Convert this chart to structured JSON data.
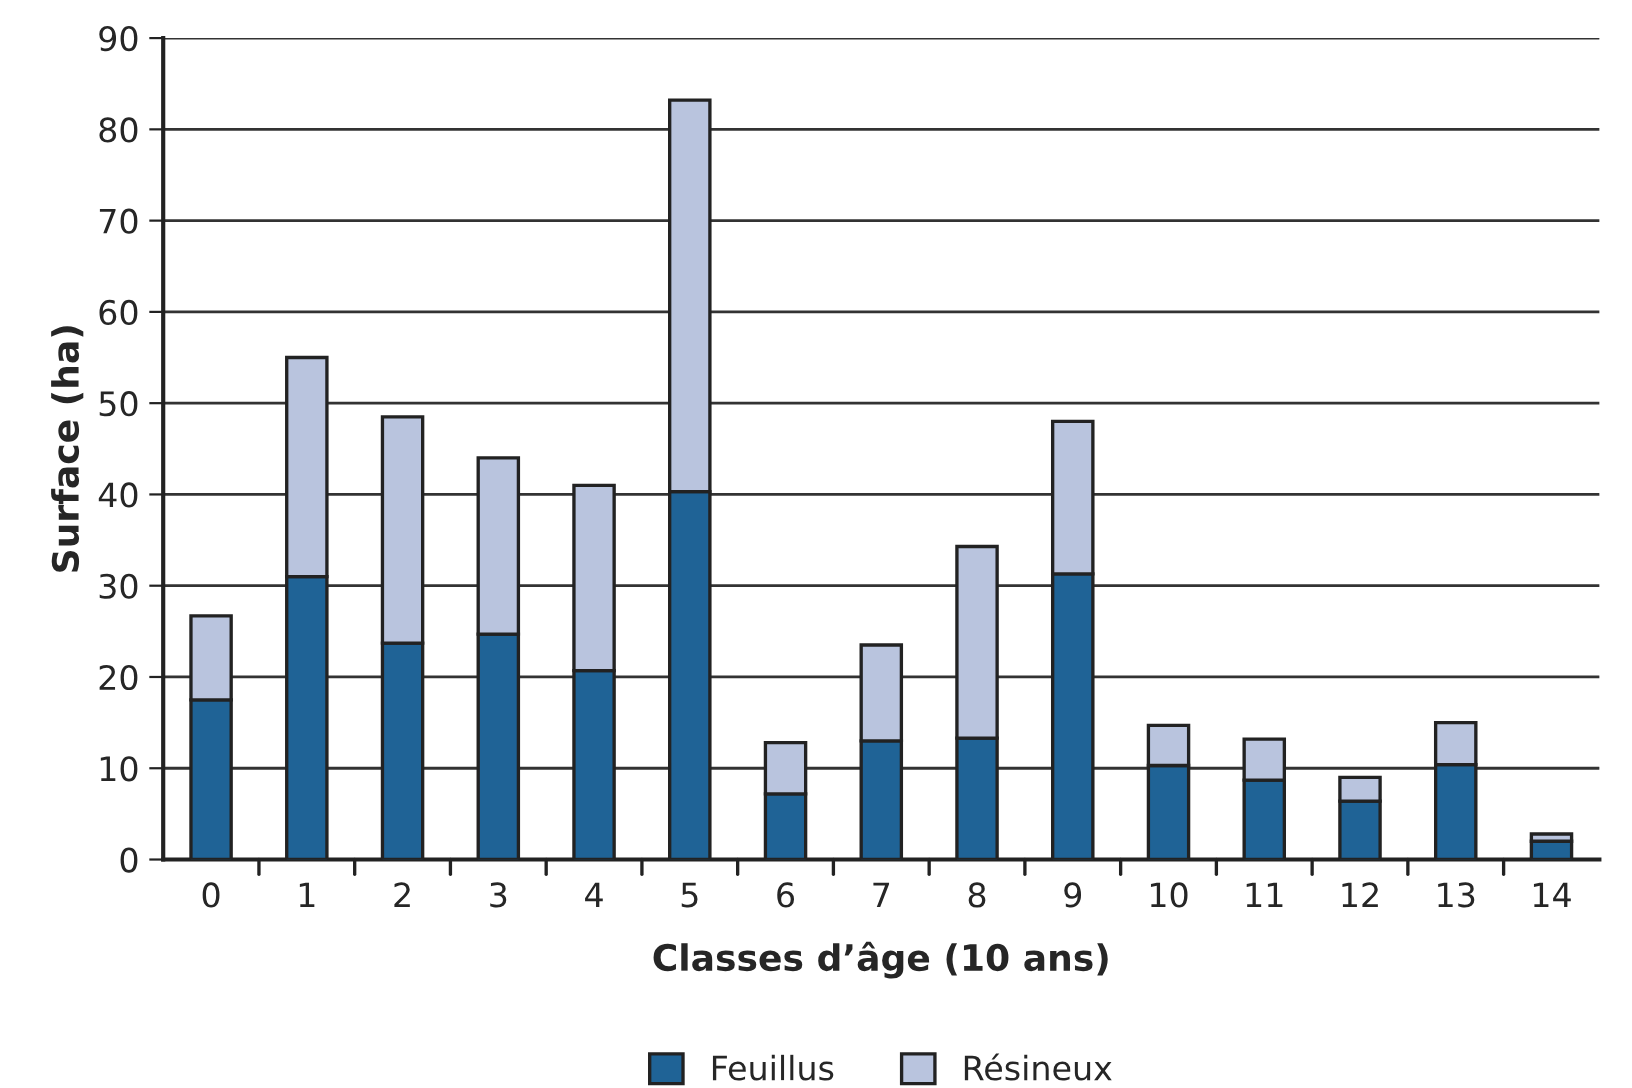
{
  "chart_data": {
    "type": "bar",
    "stacked": true,
    "xlabel": "Classes d’âge (10 ans)",
    "ylabel": "Surface (ha)",
    "categories": [
      "0",
      "1",
      "2",
      "3",
      "4",
      "5",
      "6",
      "7",
      "8",
      "9",
      "10",
      "11",
      "12",
      "13",
      "14"
    ],
    "series": [
      {
        "name": "Feuillus",
        "color": "#1f6396",
        "values": [
          17.5,
          31,
          23.7,
          24.7,
          20.7,
          40.3,
          7.2,
          13,
          13.3,
          31.3,
          10.3,
          8.7,
          6.4,
          10.4,
          2
        ]
      },
      {
        "name": "Résineux",
        "color": "#b9c4de",
        "values": [
          9.2,
          24,
          24.8,
          19.3,
          20.3,
          42.9,
          5.6,
          10.5,
          21,
          16.7,
          4.4,
          4.5,
          2.6,
          4.6,
          0.8
        ]
      }
    ],
    "ylim": [
      0,
      90
    ],
    "yticks": [
      0,
      10,
      20,
      30,
      40,
      50,
      60,
      70,
      80,
      90
    ],
    "grid": "y",
    "legend": "bottom"
  }
}
